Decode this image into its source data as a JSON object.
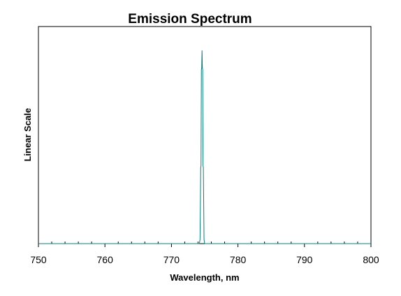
{
  "chart_data": {
    "type": "line",
    "title": "Emission Spectrum",
    "xlabel": "Wavelength, nm",
    "ylabel": "Linear Scale",
    "xlim": [
      750,
      800
    ],
    "ylim": [
      0,
      1
    ],
    "x_ticks": [
      "750",
      "760",
      "770",
      "780",
      "790",
      "800"
    ],
    "minor_tick_step": 2,
    "grid": false,
    "legend": "none",
    "y_tick_labels_shown": false,
    "line_color": "#008080",
    "frame_color": "#000000",
    "series": [
      {
        "x": [
          750,
          774.2,
          774.3,
          774.4,
          774.45,
          774.5,
          774.55,
          774.6,
          774.65,
          774.7,
          774.75,
          774.8,
          774.9,
          775.0,
          800
        ],
        "y": [
          0,
          0,
          0.02,
          0.35,
          0.36,
          0.8,
          0.81,
          0.89,
          0.81,
          0.8,
          0.36,
          0.35,
          0.02,
          0,
          0
        ]
      }
    ]
  }
}
